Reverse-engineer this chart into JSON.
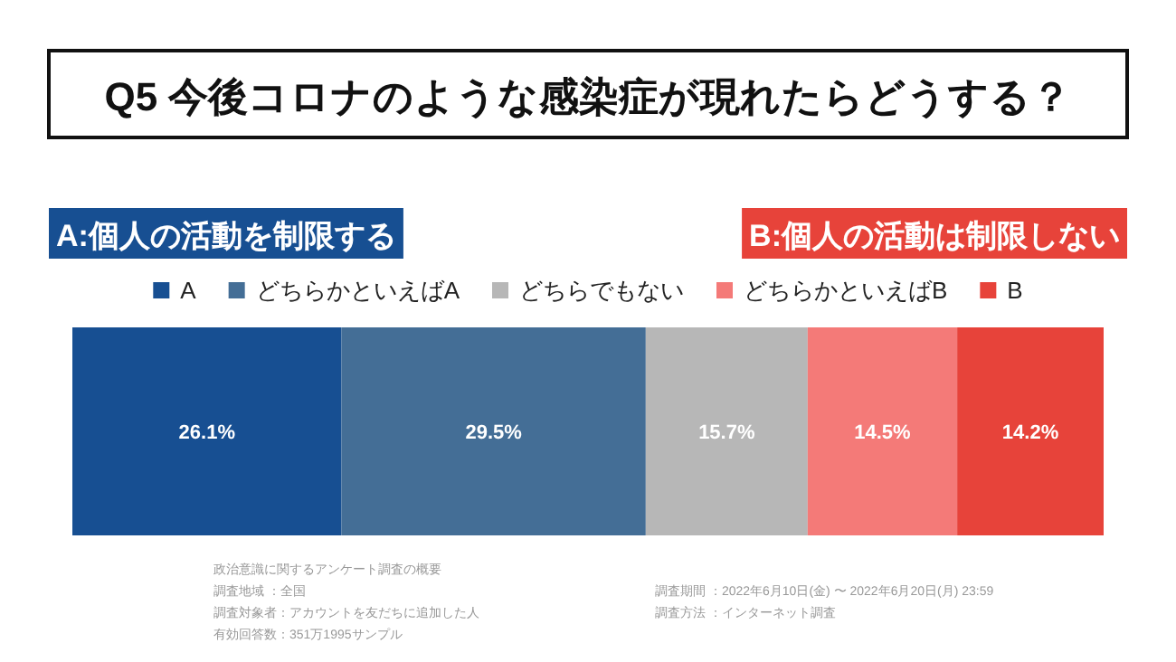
{
  "chart_data": {
    "type": "bar",
    "orientation": "horizontal",
    "stacked": true,
    "title": "Q5 今後コロナのような感染症が現れたらどうする？",
    "categories": [
      null
    ],
    "series": [
      {
        "name": "A",
        "color": "#174f92",
        "values": [
          26.1
        ],
        "value_labels": [
          "26.1%"
        ]
      },
      {
        "name": "どちらかといえばA",
        "color": "#446e96",
        "values": [
          29.5
        ],
        "value_labels": [
          "29.5%"
        ]
      },
      {
        "name": "どちらでもない",
        "color": "#b7b7b7",
        "values": [
          15.7
        ],
        "value_labels": [
          "15.7%"
        ]
      },
      {
        "name": "どちらかといえばB",
        "color": "#f47a78",
        "values": [
          14.5
        ],
        "value_labels": [
          "14.5%"
        ]
      },
      {
        "name": "B",
        "color": "#e7433a",
        "values": [
          14.2
        ],
        "value_labels": [
          "14.2%"
        ]
      }
    ],
    "legend": "top",
    "annotations": [
      "A:個人の活動を制限する",
      "B:個人の活動は制限しない",
      "政治意識に関するアンケート調査の概要",
      "調査地域 ：全国",
      "調査対象者：アカウントを友だちに追加した人",
      "有効回答数：351万1995サンプル",
      "調査期間 ：2022年6月10日(金) 〜 2022年6月20日(月) 23:59",
      "調査方法 ：インターネット調査"
    ]
  }
}
